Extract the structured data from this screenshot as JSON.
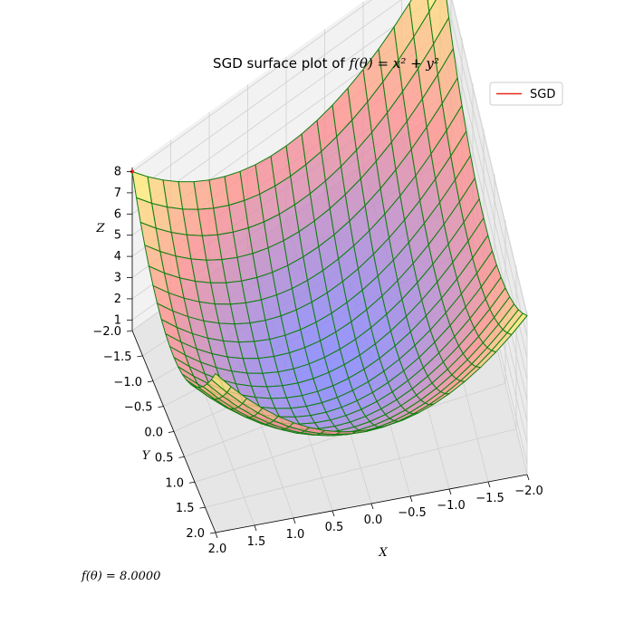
{
  "chart_data": {
    "type": "surface",
    "title_prefix": "SGD surface plot of ",
    "title_math": "f(θ) = x² + y²",
    "xlabel": "X",
    "ylabel": "Y",
    "zlabel": "Z",
    "xlim": [
      -2.0,
      2.0
    ],
    "ylim": [
      -2.0,
      2.0
    ],
    "zlim": [
      0.5,
      8.2
    ],
    "x_ticks": [
      "−2.0",
      "−1.5",
      "−1.0",
      "−0.5",
      "0.0",
      "0.5",
      "1.0",
      "1.5",
      "2.0"
    ],
    "y_ticks": [
      "−2.0",
      "−1.5",
      "−1.0",
      "−0.5",
      "0.0",
      "0.5",
      "1.0",
      "1.5",
      "2.0"
    ],
    "z_ticks": [
      "1",
      "2",
      "3",
      "4",
      "5",
      "6",
      "7",
      "8"
    ],
    "grid": true,
    "function": "x^2 + y^2",
    "grid_steps": 20,
    "colormap": [
      "#7f7fff",
      "#ff8c8c",
      "#ffff70"
    ],
    "wire_color": "#108010",
    "legend": {
      "position": "top-right",
      "entries": [
        {
          "label": "SGD",
          "color": "#e8281e"
        }
      ]
    },
    "sgd_point": {
      "x": 2.0,
      "y": -2.0,
      "z": 8.0
    },
    "status_text": "f(θ) = 8.0000"
  }
}
